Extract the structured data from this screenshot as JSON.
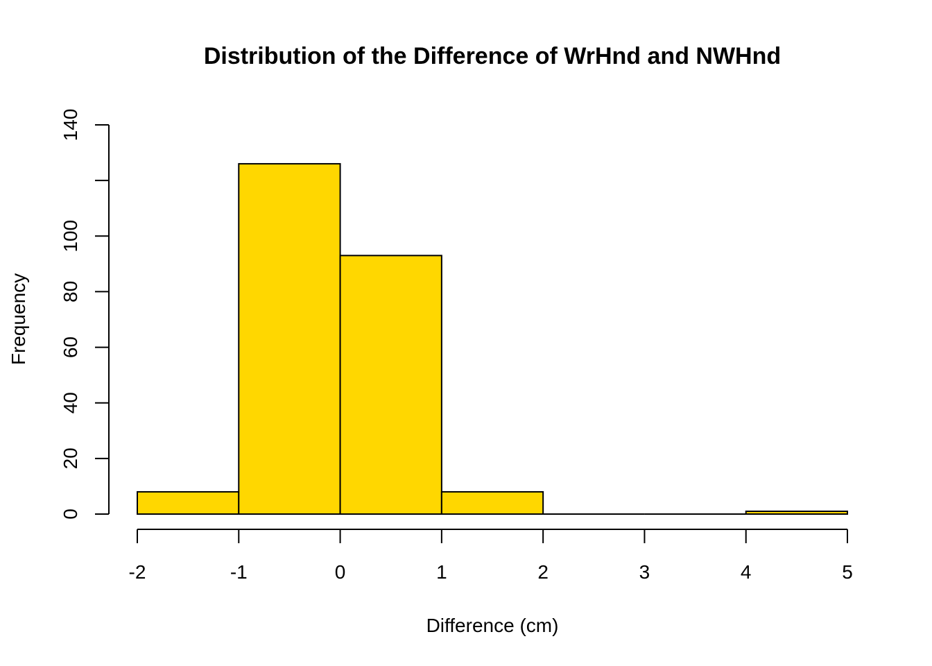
{
  "chart_data": {
    "type": "bar",
    "title": "Distribution of the Difference of WrHnd and NWHnd",
    "xlabel": "Difference (cm)",
    "ylabel": "Frequency",
    "bins": [
      {
        "start": -2,
        "end": -1,
        "count": 8
      },
      {
        "start": -1,
        "end": 0,
        "count": 126
      },
      {
        "start": 0,
        "end": 1,
        "count": 93
      },
      {
        "start": 1,
        "end": 2,
        "count": 8
      },
      {
        "start": 2,
        "end": 3,
        "count": 0
      },
      {
        "start": 3,
        "end": 4,
        "count": 0
      },
      {
        "start": 4,
        "end": 5,
        "count": 1
      }
    ],
    "x_ticks": [
      "-2",
      "-1",
      "0",
      "1",
      "2",
      "3",
      "4",
      "5"
    ],
    "y_ticks": [
      0,
      20,
      40,
      60,
      80,
      100,
      120,
      140
    ],
    "y_tick_labels": [
      "0",
      "20",
      "40",
      "60",
      "80",
      "100",
      "",
      "140"
    ],
    "xlim": [
      -2,
      5
    ],
    "ylim": [
      0,
      140
    ],
    "grid": false,
    "colors": {
      "bar_fill": "#FFD700",
      "bar_border": "#000000"
    }
  }
}
